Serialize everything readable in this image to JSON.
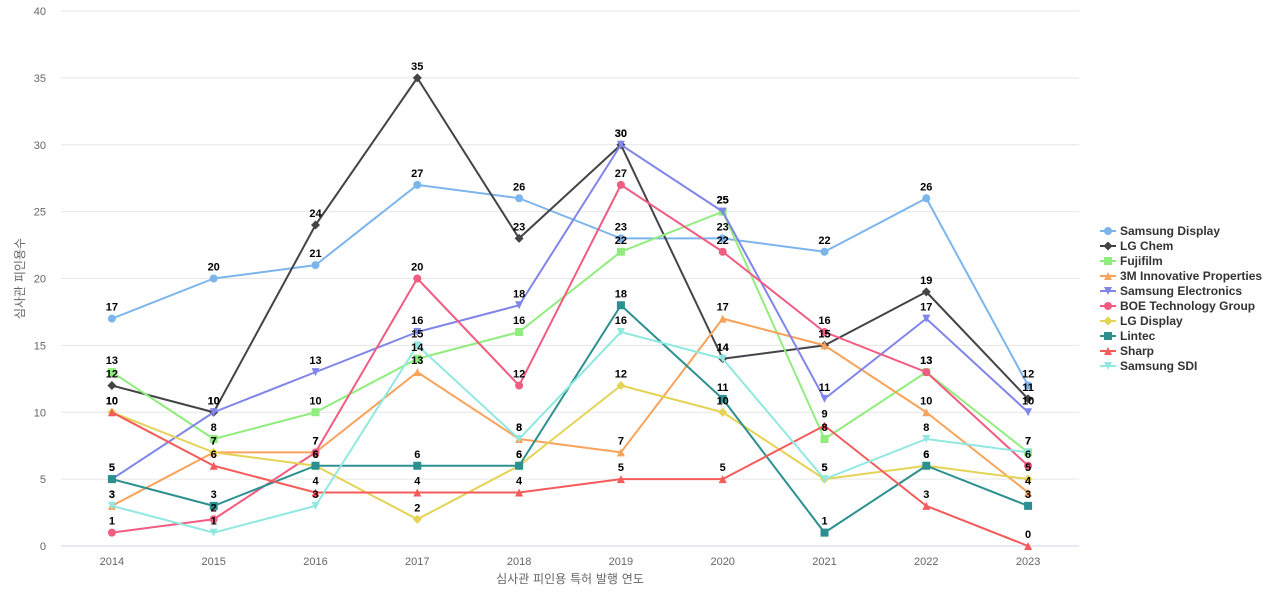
{
  "chart_data": {
    "type": "line",
    "title": "",
    "xlabel": "심사관 피인용 특허 발행 연도",
    "ylabel": "심사관 피인용수",
    "x": [
      2014,
      2015,
      2016,
      2017,
      2018,
      2019,
      2020,
      2021,
      2022,
      2023
    ],
    "ylim": [
      0,
      40
    ],
    "yticks": [
      0,
      5,
      10,
      15,
      20,
      25,
      30,
      35,
      40
    ],
    "grid": true,
    "legend_position": "right",
    "series": [
      {
        "name": "Samsung Display",
        "color": "#7cb5ec",
        "marker": "circle",
        "values": [
          17,
          20,
          21,
          27,
          26,
          23,
          23,
          22,
          26,
          12
        ]
      },
      {
        "name": "LG Chem",
        "color": "#434348",
        "marker": "diamond",
        "values": [
          12,
          10,
          24,
          35,
          23,
          30,
          14,
          15,
          19,
          11
        ]
      },
      {
        "name": "Fujifilm",
        "color": "#90ed7d",
        "marker": "square",
        "values": [
          13,
          8,
          10,
          14,
          16,
          22,
          25,
          8,
          13,
          7
        ]
      },
      {
        "name": "3M Innovative Properties",
        "color": "#f7a35c",
        "marker": "triangle",
        "values": [
          3,
          7,
          7,
          13,
          8,
          7,
          17,
          15,
          10,
          4
        ]
      },
      {
        "name": "Samsung Electronics",
        "color": "#8085e9",
        "marker": "triangle-down",
        "values": [
          5,
          10,
          13,
          16,
          18,
          30,
          25,
          11,
          17,
          10
        ]
      },
      {
        "name": "BOE Technology Group",
        "color": "#f15c80",
        "marker": "circle",
        "values": [
          1,
          2,
          7,
          20,
          12,
          27,
          22,
          16,
          13,
          6
        ]
      },
      {
        "name": "LG Display",
        "color": "#e4d354",
        "marker": "diamond",
        "values": [
          10,
          7,
          6,
          2,
          6,
          12,
          10,
          5,
          6,
          5
        ]
      },
      {
        "name": "Lintec",
        "color": "#2b908f",
        "marker": "square",
        "values": [
          5,
          3,
          6,
          6,
          6,
          18,
          11,
          1,
          6,
          3
        ]
      },
      {
        "name": "Sharp",
        "color": "#f45b5b",
        "marker": "triangle",
        "values": [
          10,
          6,
          4,
          4,
          4,
          5,
          5,
          9,
          3,
          0
        ]
      },
      {
        "name": "Samsung SDI",
        "color": "#91e8e1",
        "marker": "triangle-down",
        "values": [
          3,
          1,
          3,
          15,
          8,
          16,
          14,
          5,
          8,
          7
        ]
      }
    ]
  }
}
